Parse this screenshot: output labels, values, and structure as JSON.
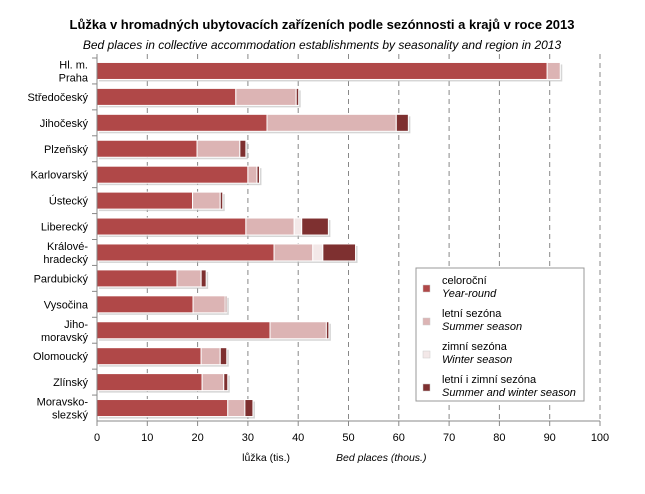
{
  "chart_data": {
    "type": "bar",
    "orientation": "horizontal",
    "stacked": true,
    "title": "Lůžka v hromadných ubytovacích zařízeních podle sezónnosti a krajů v roce 2013",
    "subtitle": "Bed places in collective accommodation establishments by seasonality and region in 2013",
    "xlabel": "lůžka (tis.)",
    "xlabel_en": "Bed places (thous.)",
    "xlim": [
      0,
      100
    ],
    "xticks": [
      0,
      10,
      20,
      30,
      40,
      50,
      60,
      70,
      80,
      90,
      100
    ],
    "grid": "vertical dashed",
    "legend_position": "right",
    "categories": [
      [
        "Hl. m.",
        "Praha"
      ],
      [
        "Středočeský"
      ],
      [
        "Jihočeský"
      ],
      [
        "Plzeňský"
      ],
      [
        "Karlovarský"
      ],
      [
        "Ústecký"
      ],
      [
        "Liberecký"
      ],
      [
        "Králové-",
        "hradecký"
      ],
      [
        "Pardubický"
      ],
      [
        "Vysočina"
      ],
      [
        "Jiho-",
        "moravský"
      ],
      [
        "Olomoucký"
      ],
      [
        "Zlínský"
      ],
      [
        "Moravsko-",
        "slezský"
      ]
    ],
    "series": [
      {
        "name": "celoroční",
        "name_en": "Year-round",
        "color": "#b04848",
        "values": [
          89.5,
          27.6,
          33.8,
          19.9,
          30.0,
          19.0,
          29.6,
          35.2,
          15.9,
          19.1,
          34.4,
          20.7,
          20.9,
          26.0
        ]
      },
      {
        "name": "letní sezóna",
        "name_en": "Summer season",
        "color": "#dcb4b4",
        "values": [
          2.6,
          12.0,
          25.7,
          8.5,
          1.8,
          5.5,
          9.6,
          7.7,
          4.8,
          6.4,
          11.2,
          3.8,
          4.3,
          3.4
        ]
      },
      {
        "name": "zimní sezóna",
        "name_en": "Winter season",
        "color": "#f3e8e8",
        "values": [
          0,
          0,
          0,
          0,
          0,
          0,
          1.5,
          2.0,
          0,
          0,
          0,
          0,
          0,
          0
        ]
      },
      {
        "name": "letní i zimní sezóna",
        "name_en": "Summer and winter season",
        "color": "#7e3030",
        "values": [
          0,
          0.5,
          2.4,
          1.2,
          0.5,
          0.5,
          5.3,
          6.5,
          1.0,
          0.3,
          0.5,
          1.3,
          0.8,
          1.6
        ]
      }
    ]
  }
}
